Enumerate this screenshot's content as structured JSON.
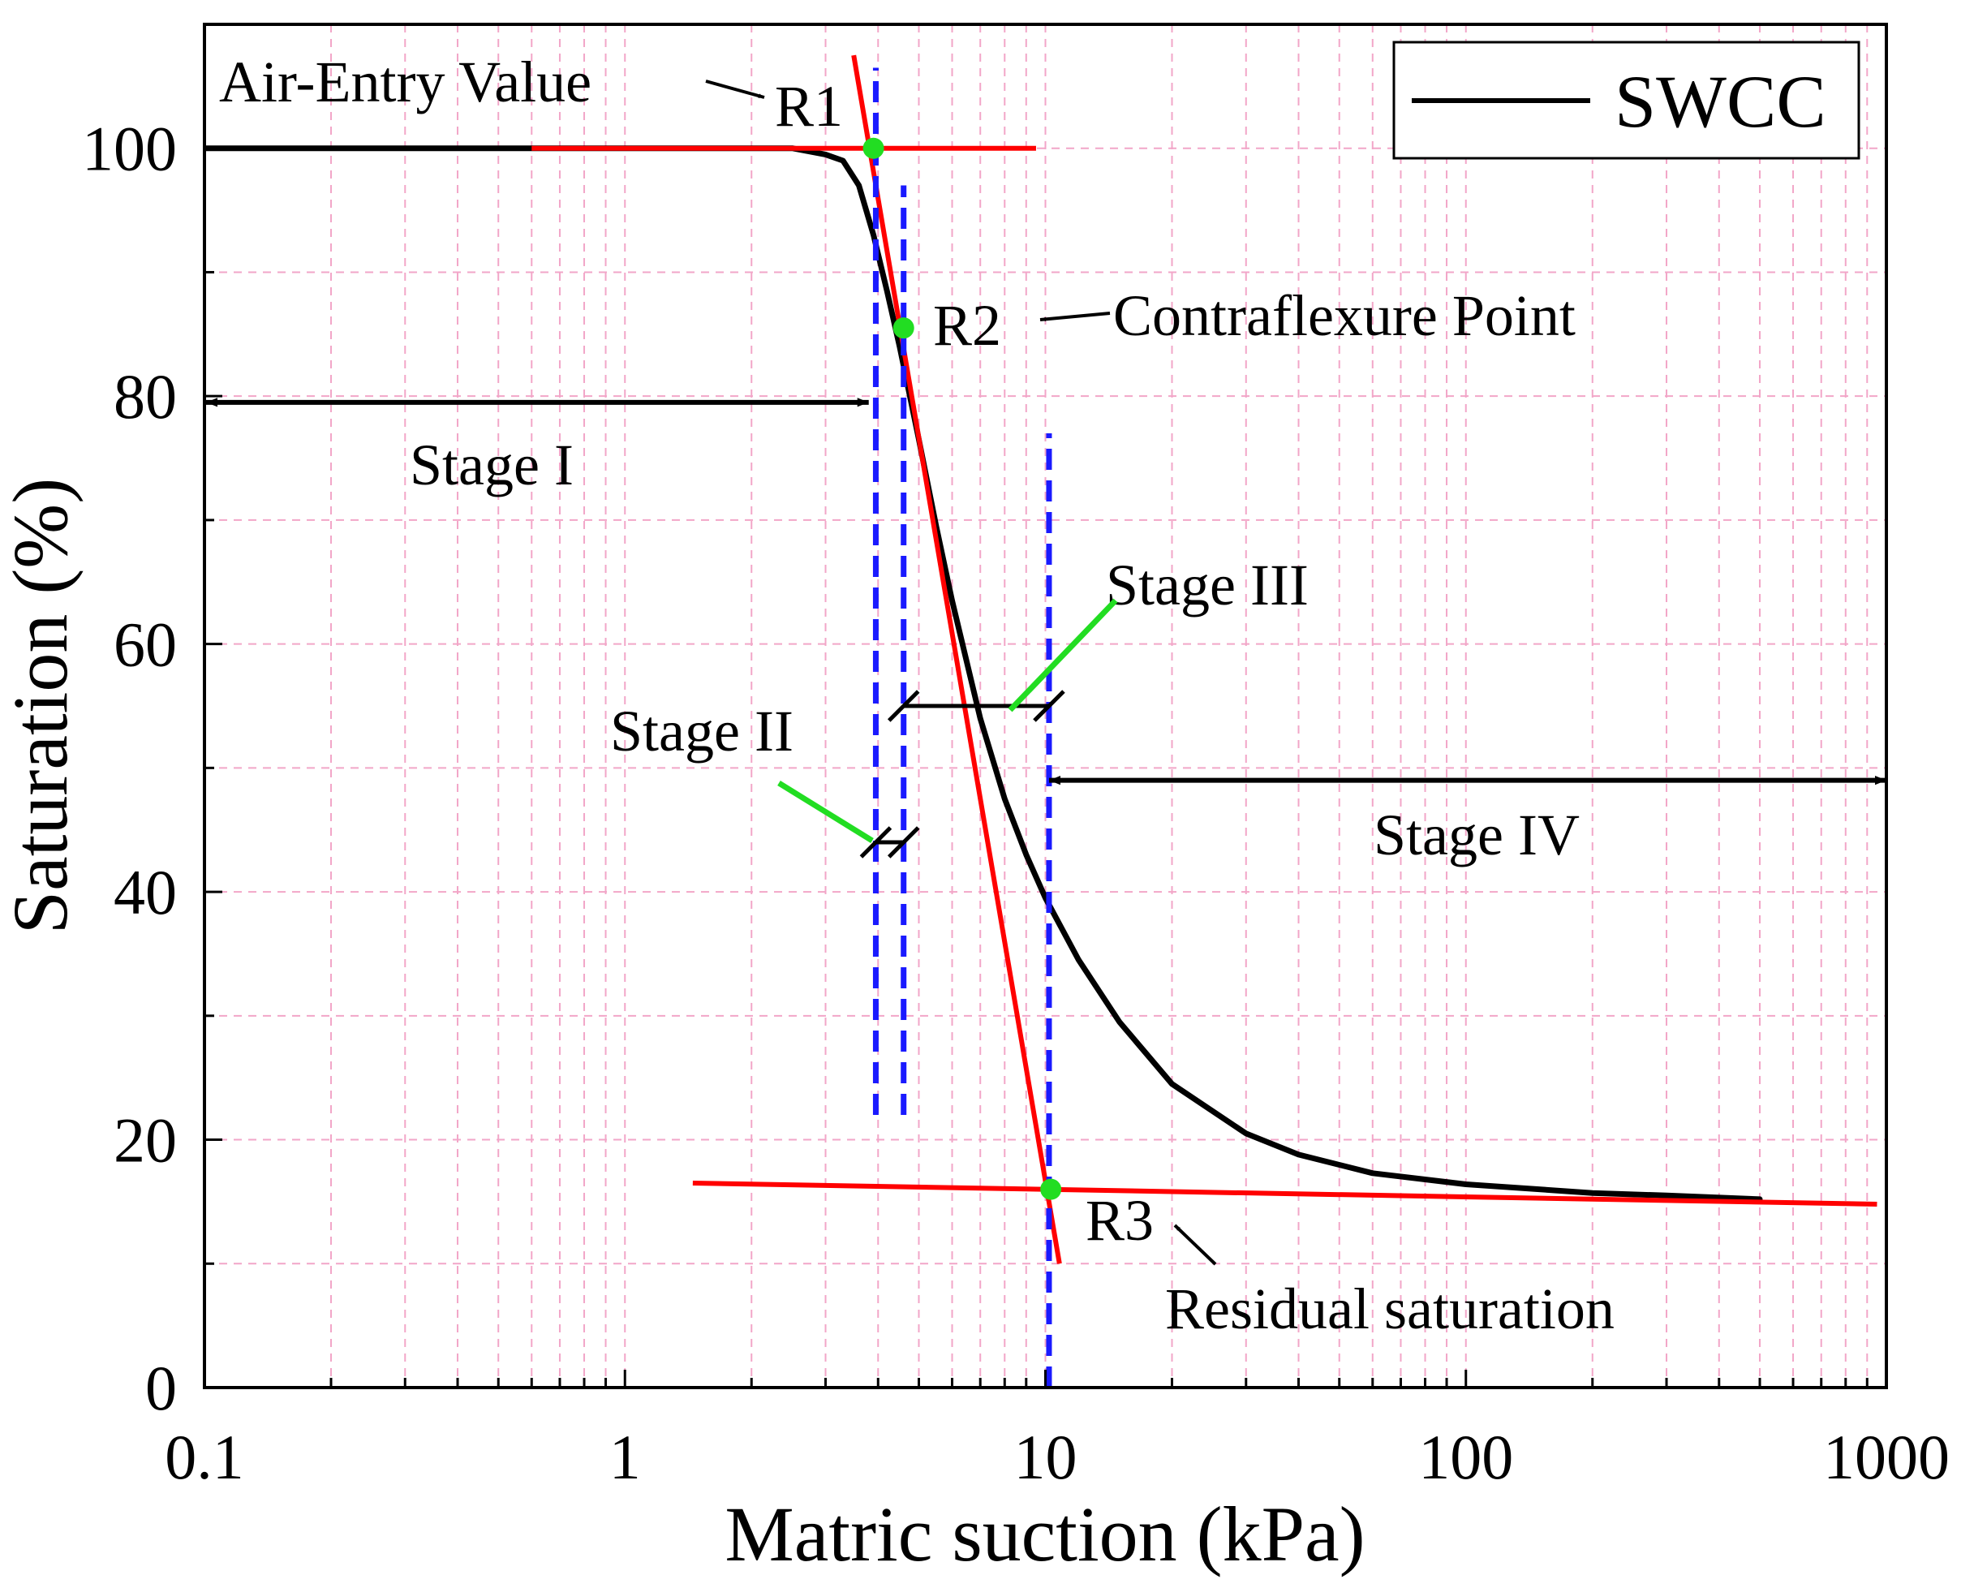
{
  "chart_data": {
    "type": "line",
    "xscale": "log",
    "xlabel": "Matric suction (kPa)",
    "ylabel": "Saturation (%)",
    "xlim": [
      0.1,
      1000
    ],
    "ylim": [
      0,
      110
    ],
    "grid": true,
    "xticks": [
      {
        "v": 0.1,
        "label": "0.1"
      },
      {
        "v": 1,
        "label": "1"
      },
      {
        "v": 10,
        "label": "10"
      },
      {
        "v": 100,
        "label": "100"
      },
      {
        "v": 1000,
        "label": "1000"
      }
    ],
    "yticks": [
      {
        "v": 0,
        "label": "0"
      },
      {
        "v": 20,
        "label": "20"
      },
      {
        "v": 40,
        "label": "40"
      },
      {
        "v": 60,
        "label": "60"
      },
      {
        "v": 80,
        "label": "80"
      },
      {
        "v": 100,
        "label": "100"
      }
    ],
    "legend": {
      "label": "SWCC",
      "position": "top-right"
    },
    "swcc_curve": {
      "name": "SWCC",
      "color": "#000000",
      "x": [
        0.1,
        1.0,
        2.0,
        2.5,
        3.0,
        3.3,
        3.6,
        3.9,
        4.2,
        4.5,
        5.0,
        5.5,
        6.0,
        7.0,
        8.0,
        9.0,
        10.0,
        12.0,
        15.0,
        20.0,
        30.0,
        40.0,
        60.0,
        100.0,
        200.0,
        300.0,
        500.0
      ],
      "y": [
        100,
        100,
        100,
        100,
        99.5,
        99.0,
        97.0,
        93.0,
        88.5,
        84.0,
        76.5,
        69.5,
        63.5,
        54.0,
        47.5,
        43.0,
        39.5,
        34.5,
        29.5,
        24.5,
        20.5,
        18.8,
        17.3,
        16.4,
        15.7,
        15.5,
        15.2
      ]
    },
    "tangent_lines": [
      {
        "name": "upper-tangent",
        "color": "#ff0000",
        "x": [
          0.6,
          9.5
        ],
        "y": [
          100,
          100
        ]
      },
      {
        "name": "steep-tangent",
        "color": "#ff0000",
        "x": [
          3.5,
          10.8
        ],
        "y": [
          107.5,
          10.0
        ]
      },
      {
        "name": "residual-tangent",
        "color": "#ff0000",
        "x": [
          1.45,
          950
        ],
        "y": [
          16.5,
          14.8
        ]
      }
    ],
    "key_points": [
      {
        "label": "R1",
        "x": 3.9,
        "y": 100,
        "color": "#22dd22"
      },
      {
        "label": "R2",
        "x": 4.6,
        "y": 85.5,
        "color": "#22dd22"
      },
      {
        "label": "R3",
        "x": 10.3,
        "y": 16.0,
        "color": "#22dd22"
      }
    ],
    "boundaries": [
      {
        "name": "boundary-1",
        "color": "#1a1aff",
        "x": 3.95,
        "y": [
          22,
          106.5
        ]
      },
      {
        "name": "boundary-2",
        "color": "#1a1aff",
        "x": 4.6,
        "y": [
          22,
          97
        ]
      },
      {
        "name": "boundary-3",
        "color": "#1a1aff",
        "x": 10.2,
        "y": [
          0,
          77
        ]
      }
    ],
    "stage_spans": [
      {
        "name": "stage-i-span",
        "x": [
          0.1,
          3.8
        ],
        "y": 79.5,
        "kind": "double-arrow"
      },
      {
        "name": "stage-iv-span",
        "x": [
          10.2,
          1000
        ],
        "y": 49,
        "kind": "double-arrow"
      },
      {
        "name": "stage-ii-span",
        "x": [
          3.95,
          4.6
        ],
        "y": 44,
        "kind": "ticks"
      },
      {
        "name": "stage-iii-span",
        "x": [
          4.6,
          10.2
        ],
        "y": 55,
        "kind": "ticks"
      }
    ],
    "annotations": {
      "air_entry": "Air-Entry Value",
      "contraflexure": "Contraflexure Point",
      "residual": "Residual saturation",
      "stage_1": "Stage I",
      "stage_2": "Stage II",
      "stage_3": "Stage III",
      "stage_4": "Stage IV"
    }
  }
}
